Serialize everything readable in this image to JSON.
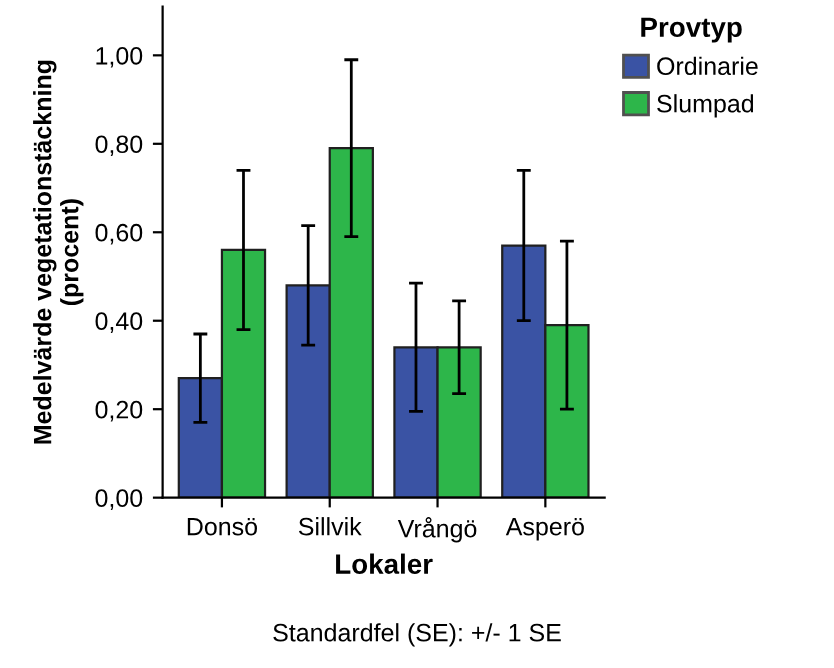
{
  "chart_data": {
    "type": "bar",
    "xlabel": "Lokaler",
    "ylabel": "Medelvärde vegetationstäckning\n(procent)",
    "legend_title": "Provtyp",
    "legend": "right",
    "categories": [
      "Donsö",
      "Sillvik",
      "Vrångö",
      "Asperö"
    ],
    "series": [
      {
        "name": "Ordinarie",
        "color": "#3a53a4",
        "values": [
          0.27,
          0.48,
          0.34,
          0.57
        ],
        "errors": [
          [
            0.17,
            0.37
          ],
          [
            0.345,
            0.615
          ],
          [
            0.195,
            0.485
          ],
          [
            0.4,
            0.74
          ]
        ]
      },
      {
        "name": "Slumpad",
        "color": "#2db64a",
        "values": [
          0.56,
          0.79,
          0.34,
          0.39
        ],
        "errors": [
          [
            0.38,
            0.74
          ],
          [
            0.59,
            0.99
          ],
          [
            0.235,
            0.445
          ],
          [
            0.2,
            0.58
          ]
        ]
      }
    ],
    "ylim": [
      0,
      1.11
    ],
    "yticks": [
      {
        "value": 0,
        "label": "0,00"
      },
      {
        "value": 0.2,
        "label": "0,20"
      },
      {
        "value": 0.4,
        "label": "0,40"
      },
      {
        "value": 0.6,
        "label": "0,60"
      },
      {
        "value": 0.8,
        "label": "0,80"
      },
      {
        "value": 1.0,
        "label": "1,00"
      }
    ],
    "grid": false,
    "annotations": [
      "Standardfel (SE): +/- 1 SE"
    ]
  }
}
